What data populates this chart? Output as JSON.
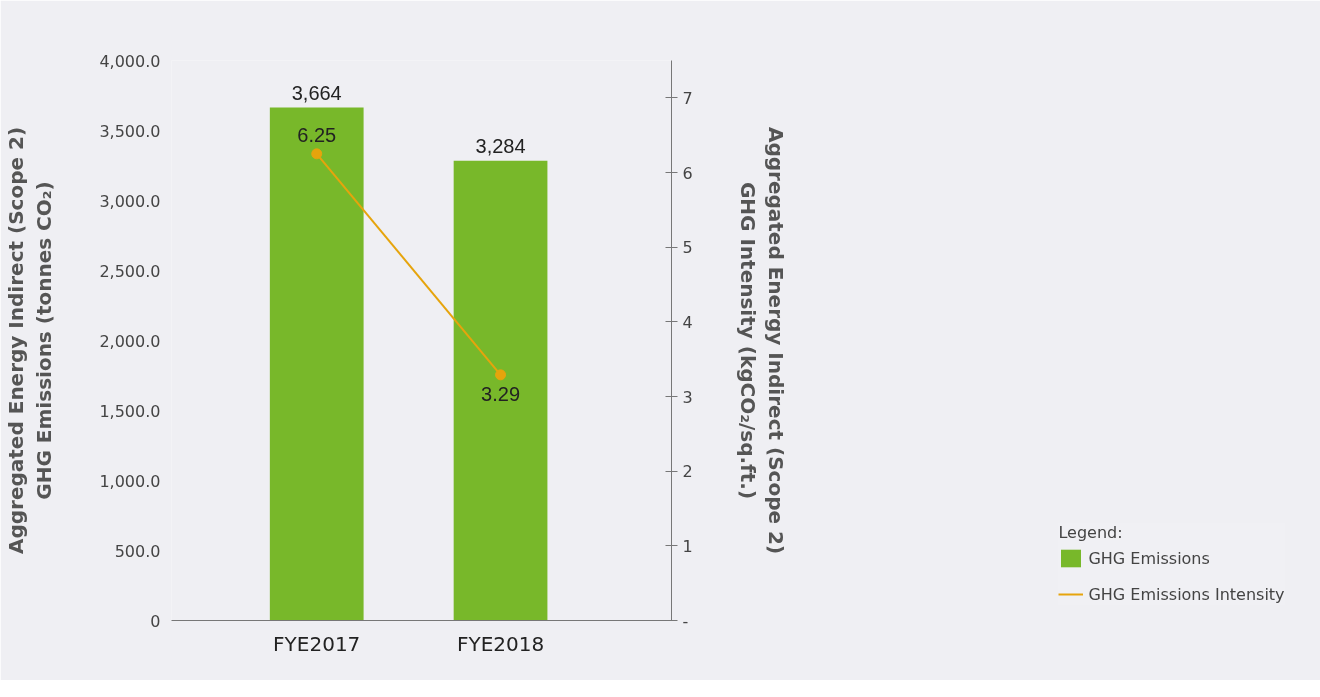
{
  "chart_data": {
    "type": "bar",
    "categories": [
      "FYE2017",
      "FYE2018"
    ],
    "ylabel": "Aggregated Energy Indirect (Scope 2)\nGHG Emissions (tonnes CO₂)",
    "y2label": "Aggregated Energy Indirect (Scope 2)\nGHG Intensity (kgCO₂/sq.ft.)",
    "ylim": [
      0,
      4000
    ],
    "yticks": [
      {
        "value": 0,
        "label": "0"
      },
      {
        "value": 500,
        "label": "500.0"
      },
      {
        "value": 1000,
        "label": "1,000.0"
      },
      {
        "value": 1500,
        "label": "1,500.0"
      },
      {
        "value": 2000,
        "label": "2,000.0"
      },
      {
        "value": 2500,
        "label": "2,500.0"
      },
      {
        "value": 3000,
        "label": "3,000.0"
      },
      {
        "value": 3500,
        "label": "3,500.0"
      },
      {
        "value": 4000,
        "label": "4,000.0"
      }
    ],
    "y2lim": [
      0,
      7.5
    ],
    "y2ticks": [
      {
        "value": 0,
        "label": "-"
      },
      1,
      2,
      3,
      4,
      5,
      6,
      7
    ],
    "grid": false,
    "legend": "bottom right",
    "legend_title": "Legend:",
    "marker": "circle",
    "series": [
      {
        "name": "GHG Emissions",
        "color": "#78b82a",
        "values": [
          3664,
          3284
        ],
        "value_labels": [
          "3,664",
          "3,284"
        ]
      },
      {
        "name": "GHG Emissions Intensity",
        "type": "line",
        "axis": "y2",
        "color": "#e6a40c",
        "values": [
          6.25,
          3.29
        ],
        "value_labels": [
          "6.25",
          "3.29"
        ]
      }
    ]
  }
}
